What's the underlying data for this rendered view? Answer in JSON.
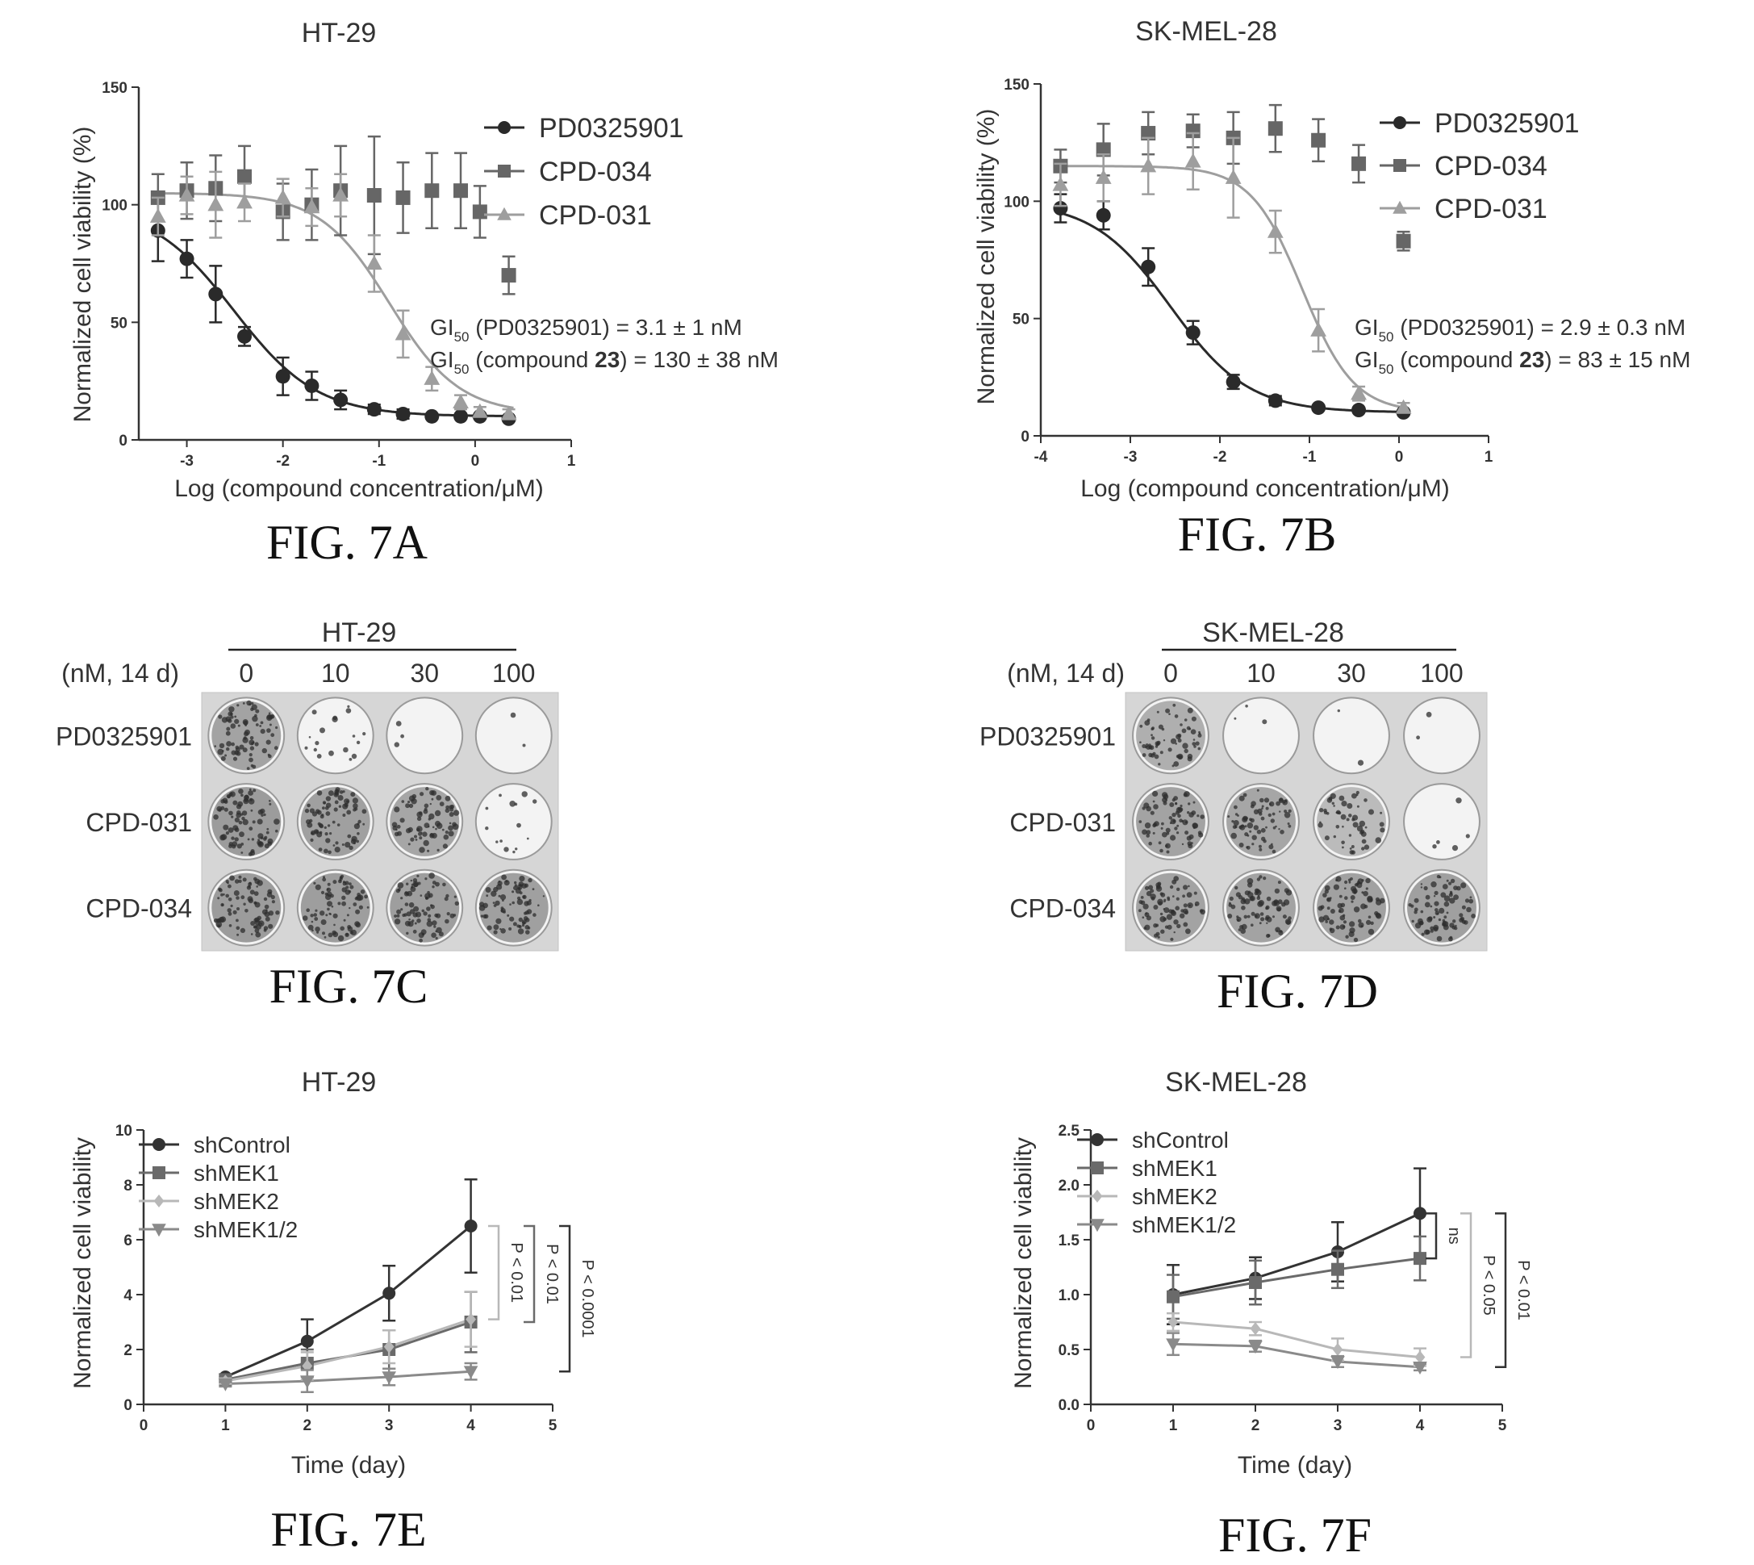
{
  "colors": {
    "pd": "#2a2a2a",
    "cpd034": "#666666",
    "cpd031": "#9e9e9e",
    "shControl": "#333333",
    "shMEK1": "#6a6a6a",
    "shMEK2": "#b8b8b8",
    "shMEK12": "#8a8a8a"
  },
  "figure_labels": [
    "FIG. 7A",
    "FIG. 7B",
    "FIG. 7C",
    "FIG. 7D",
    "FIG. 7E",
    "FIG. 7F"
  ],
  "chart_data": [
    {
      "id": "7A",
      "type": "scatter",
      "title": "HT-29",
      "xlabel": "Log (compound concentration/μM)",
      "ylabel": "Normalized cell viability (%)",
      "xlim": [
        -3.5,
        1
      ],
      "ylim": [
        0,
        150
      ],
      "xticks": [
        -3,
        -2,
        -1,
        0,
        1
      ],
      "yticks": [
        0,
        50,
        100,
        150
      ],
      "grid": false,
      "legend_position": "top-right",
      "annotations": [
        {
          "pre": "GI",
          "sub": "50",
          "post": " (PD0325901) = 3.1 ± 1 nM"
        },
        {
          "pre": "GI",
          "sub": "50",
          "post": " (compound ",
          "bold": "23",
          "tail": ") = 130 ± 38 nM"
        }
      ],
      "series": [
        {
          "name": "PD0325901",
          "marker": "circle",
          "color_key": "pd",
          "x": [
            -3.3,
            -3.0,
            -2.7,
            -2.4,
            -2.0,
            -1.7,
            -1.4,
            -1.05,
            -0.75,
            -0.45,
            -0.15,
            0.05,
            0.35
          ],
          "y": [
            89,
            77,
            62,
            44,
            27,
            23,
            17,
            13,
            11,
            10,
            10,
            10,
            9
          ],
          "err": [
            13,
            8,
            12,
            4,
            8,
            6,
            4,
            2,
            2,
            1,
            1,
            1,
            1
          ],
          "fit": {
            "top": 100,
            "bottom": 10,
            "logec50": -2.51,
            "hill": 1
          }
        },
        {
          "name": "CPD-034",
          "marker": "square",
          "color_key": "cpd034",
          "x": [
            -3.3,
            -3.0,
            -2.7,
            -2.4,
            -2.0,
            -1.7,
            -1.4,
            -1.05,
            -0.75,
            -0.45,
            -0.15,
            0.05,
            0.35
          ],
          "y": [
            103,
            106,
            107,
            112,
            97,
            100,
            106,
            104,
            103,
            106,
            106,
            97,
            70
          ],
          "err": [
            10,
            12,
            14,
            13,
            12,
            15,
            19,
            25,
            15,
            16,
            16,
            11,
            8
          ]
        },
        {
          "name": "CPD-031",
          "marker": "triangle",
          "color_key": "cpd031",
          "x": [
            -3.3,
            -3.0,
            -2.7,
            -2.4,
            -2.0,
            -1.7,
            -1.4,
            -1.05,
            -0.75,
            -0.45,
            -0.15,
            0.05,
            0.35
          ],
          "y": [
            95,
            104,
            100,
            101,
            103,
            99,
            104,
            75,
            45,
            26,
            16,
            12,
            11
          ],
          "err": [
            8,
            8,
            14,
            8,
            8,
            8,
            9,
            12,
            10,
            5,
            3,
            2,
            2
          ],
          "fit": {
            "top": 105,
            "bottom": 11,
            "logec50": -0.89,
            "hill": 1.2
          }
        }
      ]
    },
    {
      "id": "7B",
      "type": "scatter",
      "title": "SK-MEL-28",
      "xlabel": "Log (compound concentration/μM)",
      "ylabel": "Normalized cell viability (%)",
      "xlim": [
        -4,
        1
      ],
      "ylim": [
        0,
        150
      ],
      "xticks": [
        -4,
        -3,
        -2,
        -1,
        0,
        1
      ],
      "yticks": [
        0,
        50,
        100,
        150
      ],
      "grid": false,
      "legend_position": "top-right",
      "annotations": [
        {
          "pre": "GI",
          "sub": "50",
          "post": " (PD0325901) = 2.9 ± 0.3 nM"
        },
        {
          "pre": "GI",
          "sub": "50",
          "post": " (compound ",
          "bold": "23",
          "tail": ") = 83 ± 15 nM"
        }
      ],
      "series": [
        {
          "name": "PD0325901",
          "marker": "circle",
          "color_key": "pd",
          "x": [
            -3.78,
            -3.3,
            -2.8,
            -2.3,
            -1.85,
            -1.38,
            -0.9,
            -0.45,
            0.05
          ],
          "y": [
            97,
            94,
            72,
            44,
            23,
            15,
            12,
            11,
            10
          ],
          "err": [
            6,
            6,
            8,
            5,
            3,
            2,
            1,
            1,
            1
          ],
          "fit": {
            "top": 100,
            "bottom": 10,
            "logec50": -2.55,
            "hill": 1
          }
        },
        {
          "name": "CPD-034",
          "marker": "square",
          "color_key": "cpd034",
          "x": [
            -3.78,
            -3.3,
            -2.8,
            -2.3,
            -1.85,
            -1.38,
            -0.9,
            -0.45,
            0.05
          ],
          "y": [
            115,
            122,
            129,
            130,
            127,
            131,
            126,
            116,
            83
          ],
          "err": [
            7,
            11,
            9,
            7,
            11,
            10,
            9,
            8,
            4
          ]
        },
        {
          "name": "CPD-031",
          "marker": "triangle",
          "color_key": "cpd031",
          "x": [
            -3.78,
            -3.3,
            -2.8,
            -2.3,
            -1.85,
            -1.38,
            -0.9,
            -0.45,
            0.05
          ],
          "y": [
            107,
            110,
            115,
            117,
            110,
            87,
            45,
            18,
            12
          ],
          "err": [
            9,
            10,
            12,
            12,
            17,
            9,
            9,
            3,
            2
          ],
          "fit": {
            "top": 115,
            "bottom": 10,
            "logec50": -1.08,
            "hill": 1.5
          }
        }
      ]
    },
    {
      "id": "7E",
      "type": "line",
      "title": "HT-29",
      "xlabel": "Time (day)",
      "ylabel": "Normalized cell viability",
      "xlim": [
        0,
        5
      ],
      "ylim": [
        0,
        10
      ],
      "xticks": [
        0,
        1,
        2,
        3,
        4,
        5
      ],
      "yticks": [
        0,
        2,
        4,
        6,
        8,
        10
      ],
      "grid": false,
      "legend_position": "top-left",
      "series": [
        {
          "name": "shControl",
          "marker": "circle",
          "color_key": "shControl",
          "x": [
            1,
            2,
            3,
            4
          ],
          "y": [
            1.0,
            2.3,
            4.05,
            6.5
          ],
          "err": [
            0.1,
            0.8,
            1.0,
            1.7
          ]
        },
        {
          "name": "shMEK1",
          "marker": "square",
          "color_key": "shMEK1",
          "x": [
            1,
            2,
            3,
            4
          ],
          "y": [
            0.9,
            1.5,
            2.0,
            3.0
          ],
          "err": [
            0.1,
            0.5,
            0.7,
            1.1
          ]
        },
        {
          "name": "shMEK2",
          "marker": "diamond",
          "color_key": "shMEK2",
          "x": [
            1,
            2,
            3,
            4
          ],
          "y": [
            0.85,
            1.4,
            2.1,
            3.1
          ],
          "err": [
            0.1,
            0.5,
            0.6,
            1.0
          ]
        },
        {
          "name": "shMEK1/2",
          "marker": "triangle-down",
          "color_key": "shMEK12",
          "x": [
            1,
            2,
            3,
            4
          ],
          "y": [
            0.75,
            0.85,
            1.0,
            1.2
          ],
          "err": [
            0.1,
            0.4,
            0.3,
            0.3
          ]
        }
      ],
      "significance": [
        {
          "label": "P < 0.01",
          "y_from": 6.5,
          "y_to": 3.1,
          "level": 0,
          "color_key": "shMEK2"
        },
        {
          "label": "P < 0.01",
          "y_from": 6.5,
          "y_to": 3.0,
          "level": 1,
          "color_key": "shMEK1"
        },
        {
          "label": "P < 0.0001",
          "y_from": 6.5,
          "y_to": 1.2,
          "level": 2,
          "color_key": "shControl"
        }
      ]
    },
    {
      "id": "7F",
      "type": "line",
      "title": "SK-MEL-28",
      "xlabel": "Time (day)",
      "ylabel": "Normalized cell viability",
      "xlim": [
        0,
        5
      ],
      "ylim": [
        0,
        2.5
      ],
      "xticks": [
        0,
        1,
        2,
        3,
        4,
        5
      ],
      "yticks": [
        0.0,
        0.5,
        1.0,
        1.5,
        2.0,
        2.5
      ],
      "grid": false,
      "legend_position": "top-left",
      "series": [
        {
          "name": "shControl",
          "marker": "circle",
          "color_key": "shControl",
          "x": [
            1,
            2,
            3,
            4
          ],
          "y": [
            1.0,
            1.15,
            1.39,
            1.74
          ],
          "err": [
            0.27,
            0.19,
            0.27,
            0.41
          ]
        },
        {
          "name": "shMEK1",
          "marker": "square",
          "color_key": "shMEK1",
          "x": [
            1,
            2,
            3,
            4
          ],
          "y": [
            0.98,
            1.11,
            1.23,
            1.33
          ],
          "err": [
            0.2,
            0.2,
            0.17,
            0.2
          ]
        },
        {
          "name": "shMEK2",
          "marker": "diamond",
          "color_key": "shMEK2",
          "x": [
            1,
            2,
            3,
            4
          ],
          "y": [
            0.75,
            0.69,
            0.5,
            0.43
          ],
          "err": [
            0.08,
            0.06,
            0.1,
            0.08
          ]
        },
        {
          "name": "shMEK1/2",
          "marker": "triangle-down",
          "color_key": "shMEK12",
          "x": [
            1,
            2,
            3,
            4
          ],
          "y": [
            0.55,
            0.53,
            0.39,
            0.34
          ],
          "err": [
            0.1,
            0.05,
            0.05,
            0.03
          ]
        }
      ],
      "significance": [
        {
          "label": "ns",
          "y_from": 1.74,
          "y_to": 1.33,
          "level": 0,
          "color_key": "shControl"
        },
        {
          "label": "P < 0.05",
          "y_from": 1.74,
          "y_to": 0.43,
          "level": 1,
          "color_key": "shMEK2"
        },
        {
          "label": "P < 0.01",
          "y_from": 1.74,
          "y_to": 0.34,
          "level": 2,
          "color_key": "shControl"
        }
      ]
    },
    {
      "id": "7C",
      "type": "table",
      "title": "HT-29",
      "header_label": "(nM, 14 d)",
      "columns": [
        "0",
        "10",
        "30",
        "100"
      ],
      "rows": [
        {
          "name": "PD0325901",
          "density": [
            0.85,
            0.2,
            0.03,
            0.02
          ]
        },
        {
          "name": "CPD-031",
          "density": [
            0.92,
            0.88,
            0.82,
            0.15
          ]
        },
        {
          "name": "CPD-034",
          "density": [
            0.92,
            0.9,
            0.9,
            0.88
          ]
        }
      ]
    },
    {
      "id": "7D",
      "type": "table",
      "title": "SK-MEL-28",
      "header_label": "(nM, 14 d)",
      "columns": [
        "0",
        "10",
        "30",
        "100"
      ],
      "rows": [
        {
          "name": "PD0325901",
          "density": [
            0.72,
            0.03,
            0.02,
            0.02
          ]
        },
        {
          "name": "CPD-031",
          "density": [
            0.85,
            0.82,
            0.6,
            0.05
          ]
        },
        {
          "name": "CPD-034",
          "density": [
            0.85,
            0.85,
            0.87,
            0.88
          ]
        }
      ]
    }
  ]
}
